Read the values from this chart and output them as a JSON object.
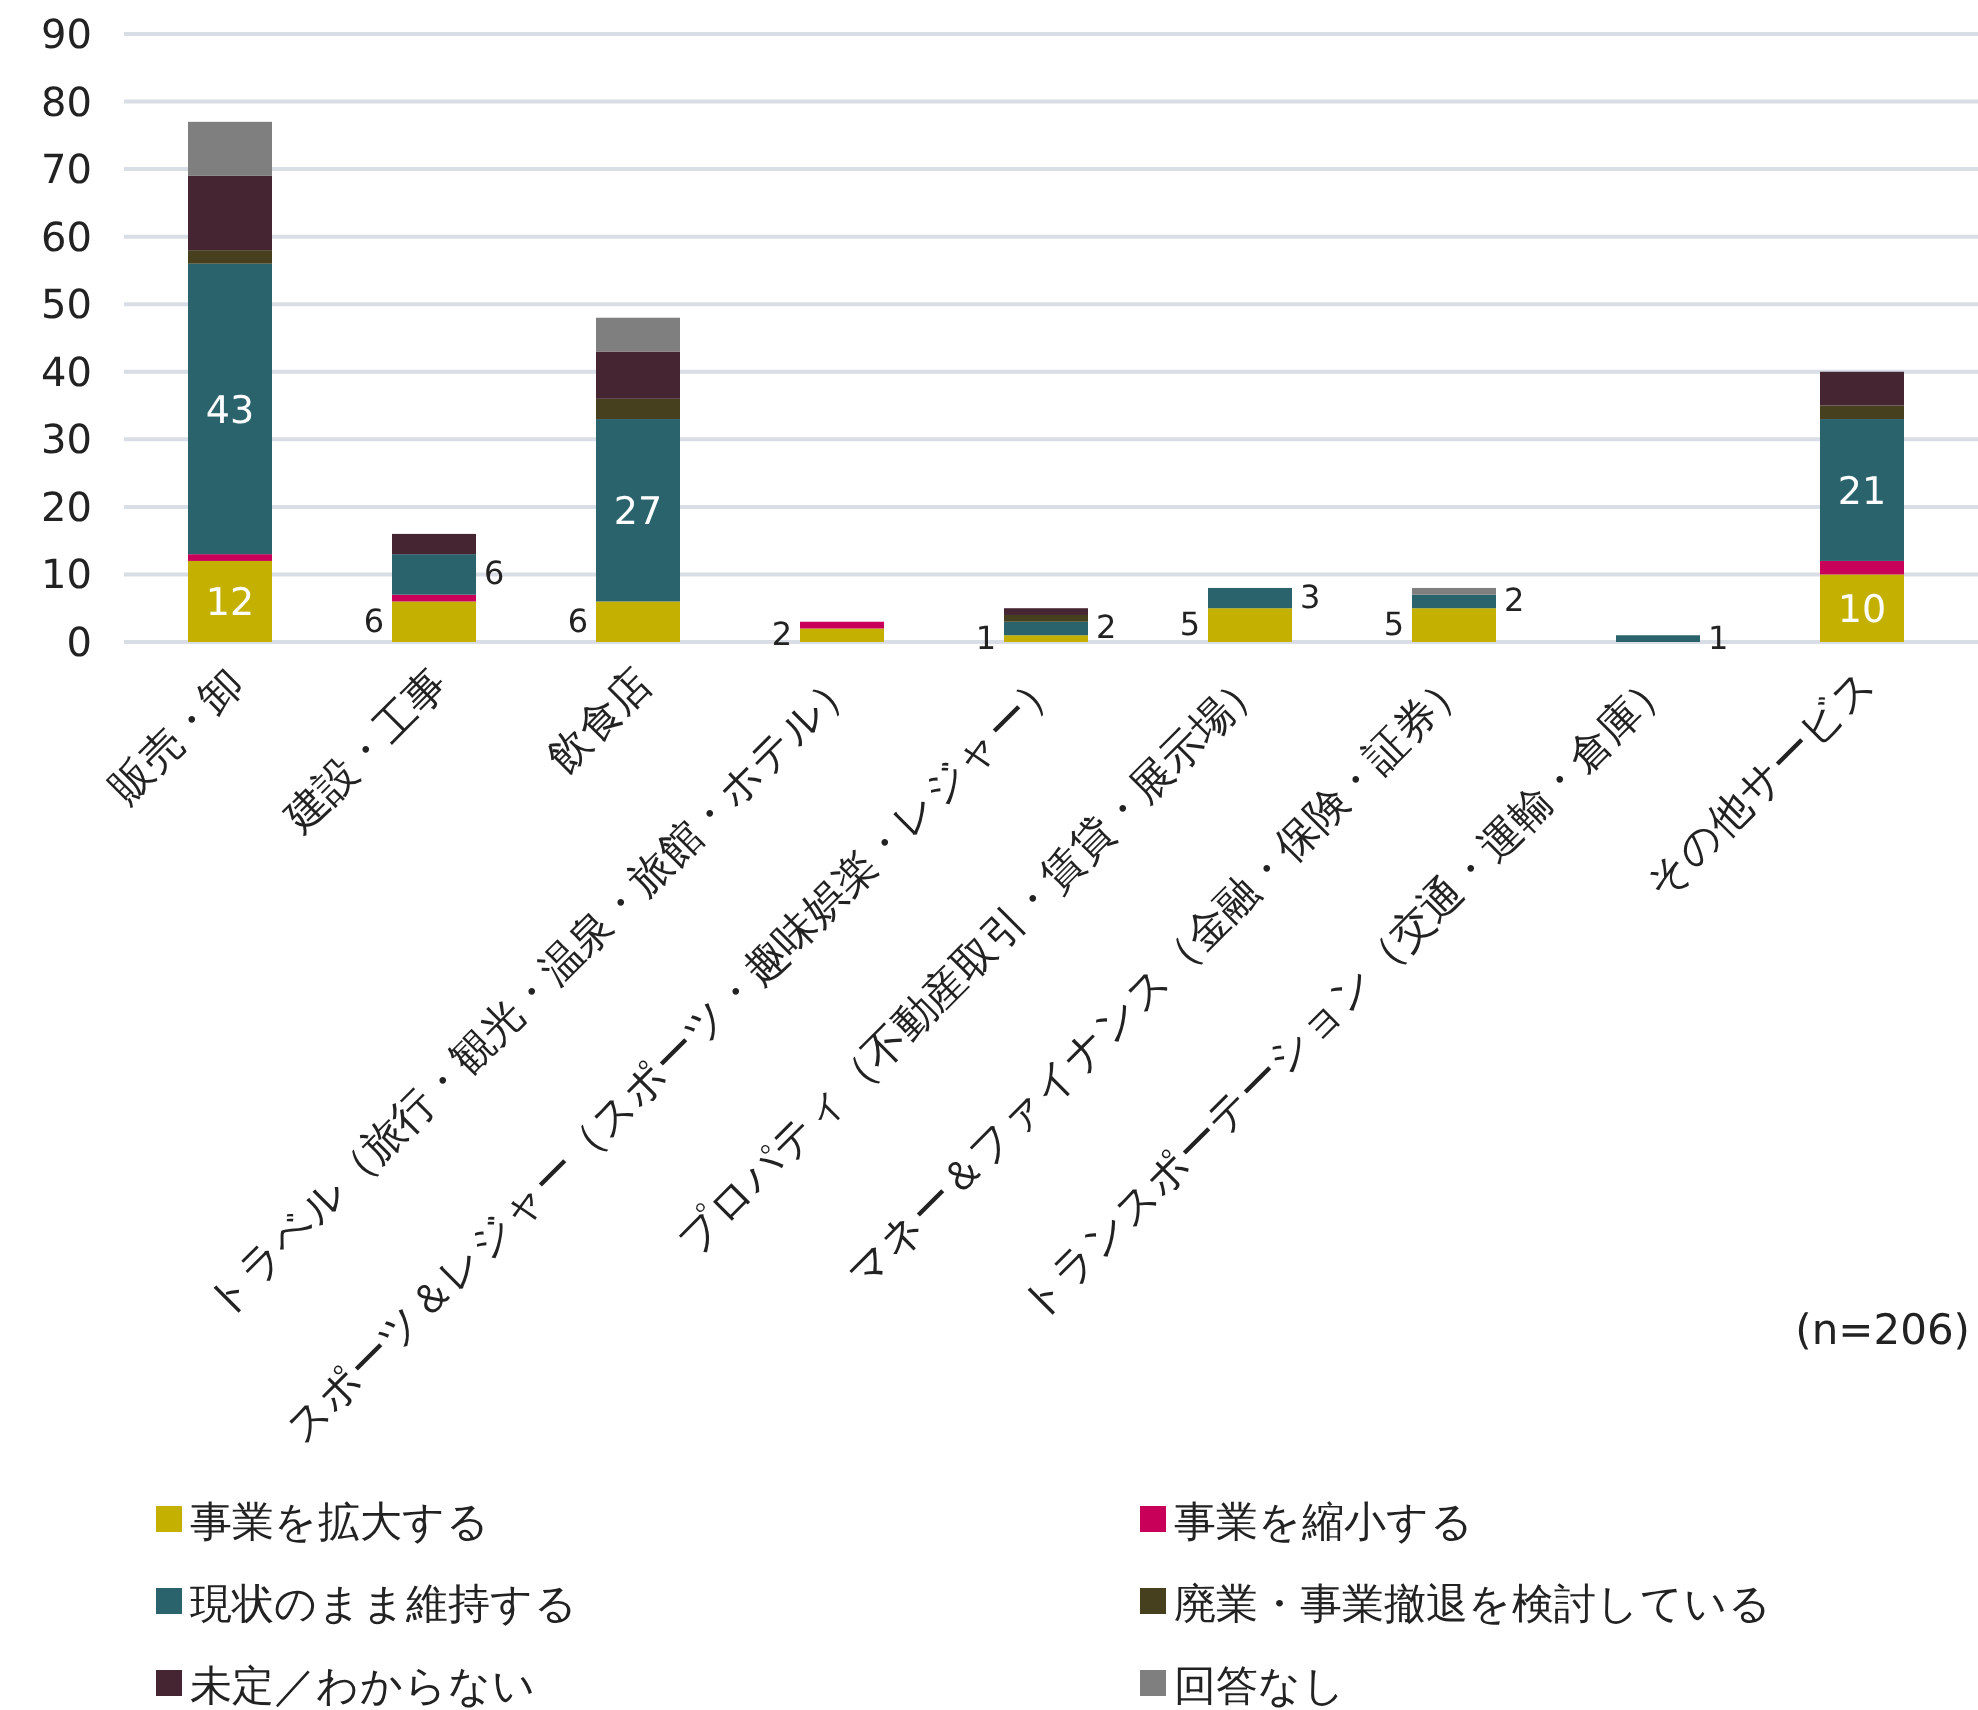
{
  "chart_data": {
    "type": "bar",
    "stacked": true,
    "categories": [
      "販売・卸",
      "建設・工事",
      "飲食店",
      "トラベル（旅行・観光・温泉・旅館・ホテル）",
      "スポーツ＆レジャー（スポーツ・趣味娯楽・レジャー）",
      "プロパティ（不動産取引・賃貸・展示場）",
      "マネー＆ファイナンス（金融・保険・証券）",
      "トランスポーテーション（交通・運輸・倉庫）",
      "その他サービス"
    ],
    "series": [
      {
        "name": "事業を拡大する",
        "color": "#c4b000",
        "values": [
          12,
          6,
          6,
          2,
          1,
          5,
          5,
          0,
          10
        ],
        "value_labels": [
          "12",
          "6",
          "6",
          "2",
          "1",
          "5",
          "5",
          null,
          "10"
        ]
      },
      {
        "name": "事業を縮小する",
        "color": "#c8005a",
        "values": [
          1,
          1,
          0,
          1,
          0,
          0,
          0,
          0,
          2
        ]
      },
      {
        "name": "現状のまま維持する",
        "color": "#2a636c",
        "values": [
          43,
          6,
          27,
          0,
          2,
          3,
          2,
          1,
          21
        ],
        "value_labels": [
          "43",
          "6",
          "27",
          null,
          "2",
          "3",
          "2",
          "1",
          "21"
        ]
      },
      {
        "name": "廃業・事業撤退を検討している",
        "color": "#46401f",
        "values": [
          2,
          0,
          3,
          0,
          1,
          0,
          0,
          0,
          2
        ]
      },
      {
        "name": "未定／わからない",
        "color": "#452532",
        "values": [
          11,
          3,
          7,
          0,
          1,
          0,
          0,
          0,
          5
        ]
      },
      {
        "name": "回答なし",
        "color": "#7f7f7f",
        "values": [
          8,
          0,
          5,
          0,
          0,
          0,
          1,
          0,
          0
        ]
      }
    ],
    "ylim": [
      0,
      90
    ],
    "yticks": [
      0,
      10,
      20,
      30,
      40,
      50,
      60,
      70,
      80,
      90
    ],
    "grid": "y",
    "legend": "bottom",
    "annotations": [
      "(n=206)"
    ]
  }
}
